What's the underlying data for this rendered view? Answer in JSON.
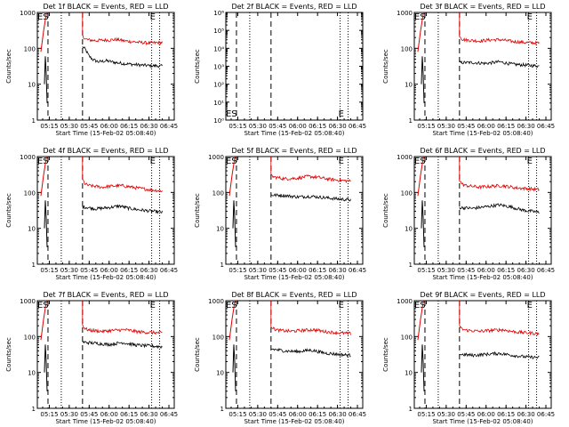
{
  "figure": {
    "background": "#ffffff",
    "events_color": "#000000",
    "lld_color": "#e00000"
  },
  "chart_data": [
    {
      "type": "line",
      "title": "Det 1f BLACK = Events, RED = LLD",
      "xlabel": "Start Time (15-Feb-02 05:08:40)",
      "ylabel": "Counts/sec",
      "yscale": "log",
      "ylim": [
        1,
        1000
      ],
      "xlim": [
        "05:06",
        "06:49"
      ],
      "x_ticks": [
        "05:15",
        "05:30",
        "05:45",
        "06:00",
        "06:15",
        "06:30",
        "06:45"
      ],
      "y_ticks": [
        "1",
        "10",
        "100",
        "1000"
      ],
      "markers": {
        "ES": "05:10",
        "E": "06:32",
        "dashed": [
          "05:14",
          "05:40"
        ],
        "dotted": [
          "05:24",
          "06:32",
          "06:38"
        ]
      },
      "data_start": "05:40",
      "series": [
        {
          "values": [
            [
              40,
              110
            ],
            [
              42,
              95
            ],
            [
              45,
              60
            ],
            [
              48,
              48
            ],
            [
              52,
              42
            ],
            [
              58,
              45
            ],
            [
              65,
              40
            ],
            [
              70,
              38
            ],
            [
              80,
              35
            ],
            [
              90,
              33
            ],
            [
              100,
              32
            ]
          ]
        },
        {
          "values": [
            [
              40,
              230
            ],
            [
              42,
              180
            ],
            [
              45,
              170
            ],
            [
              50,
              165
            ],
            [
              58,
              170
            ],
            [
              66,
              175
            ],
            [
              72,
              160
            ],
            [
              80,
              150
            ],
            [
              90,
              140
            ],
            [
              100,
              145
            ]
          ]
        }
      ]
    },
    {
      "type": "line",
      "title": "Det 2f BLACK = Events, RED = LLD",
      "xlabel": "Start Time (15-Feb-02 05:08:40)",
      "ylabel": "Counts/sec",
      "yscale": "log",
      "ylim": [
        1,
        1000000
      ],
      "xlim": [
        "05:06",
        "06:49"
      ],
      "x_ticks": [
        "05:15",
        "05:30",
        "05:45",
        "06:00",
        "06:15",
        "06:30",
        "06:45"
      ],
      "y_ticks": [
        "10⁰",
        "10¹",
        "10²",
        "10³",
        "10⁴",
        "10⁵",
        "10⁶"
      ],
      "markers": {
        "ES": "05:10",
        "E": "06:32",
        "dashed": [
          "05:14",
          "05:40"
        ],
        "dotted": [
          "05:24",
          "06:32",
          "06:38"
        ]
      },
      "data_start": "05:40",
      "series": []
    },
    {
      "type": "line",
      "title": "Det 3f BLACK = Events, RED = LLD",
      "xlabel": "Start Time (15-Feb-02 05:08:40)",
      "ylabel": "Counts/sec",
      "yscale": "log",
      "ylim": [
        1,
        1000
      ],
      "xlim": [
        "05:06",
        "06:49"
      ],
      "x_ticks": [
        "05:15",
        "05:30",
        "05:45",
        "06:00",
        "06:15",
        "06:30",
        "06:45"
      ],
      "y_ticks": [
        "1",
        "10",
        "100",
        "1000"
      ],
      "markers": {
        "ES": "05:10",
        "E": "06:32",
        "dashed": [
          "05:14",
          "05:40"
        ],
        "dotted": [
          "05:24",
          "06:32",
          "06:38"
        ]
      },
      "data_start": "05:40",
      "series": [
        {
          "values": [
            [
              40,
              40
            ],
            [
              50,
              40
            ],
            [
              60,
              38
            ],
            [
              70,
              42
            ],
            [
              80,
              36
            ],
            [
              90,
              34
            ],
            [
              100,
              32
            ]
          ]
        },
        {
          "values": [
            [
              40,
              230
            ],
            [
              42,
              180
            ],
            [
              45,
              170
            ],
            [
              55,
              160
            ],
            [
              62,
              170
            ],
            [
              70,
              175
            ],
            [
              80,
              155
            ],
            [
              90,
              145
            ],
            [
              100,
              140
            ]
          ]
        }
      ]
    },
    {
      "type": "line",
      "title": "Det 4f BLACK = Events, RED = LLD",
      "xlabel": "Start Time (15-Feb-02 05:08:40)",
      "ylabel": "Counts/sec",
      "yscale": "log",
      "ylim": [
        1,
        1000
      ],
      "xlim": [
        "05:06",
        "06:49"
      ],
      "x_ticks": [
        "05:15",
        "05:30",
        "05:45",
        "06:00",
        "06:15",
        "06:30",
        "06:45"
      ],
      "y_ticks": [
        "1",
        "10",
        "100",
        "1000"
      ],
      "markers": {
        "ES": "05:10",
        "E": "06:32",
        "dashed": [
          "05:14",
          "05:40"
        ],
        "dotted": [
          "05:24",
          "06:32",
          "06:38"
        ]
      },
      "data_start": "05:40",
      "series": [
        {
          "values": [
            [
              40,
              40
            ],
            [
              50,
              35
            ],
            [
              60,
              38
            ],
            [
              68,
              42
            ],
            [
              75,
              36
            ],
            [
              85,
              32
            ],
            [
              100,
              28
            ]
          ]
        },
        {
          "values": [
            [
              40,
              230
            ],
            [
              42,
              170
            ],
            [
              45,
              155
            ],
            [
              55,
              140
            ],
            [
              62,
              150
            ],
            [
              70,
              155
            ],
            [
              80,
              135
            ],
            [
              90,
              120
            ],
            [
              100,
              110
            ]
          ]
        }
      ]
    },
    {
      "type": "line",
      "title": "Det 5f BLACK = Events, RED = LLD",
      "xlabel": "Start Time (15-Feb-02 05:08:40)",
      "ylabel": "Counts/sec",
      "yscale": "log",
      "ylim": [
        1,
        1000
      ],
      "xlim": [
        "05:06",
        "06:49"
      ],
      "x_ticks": [
        "05:15",
        "05:30",
        "05:45",
        "06:00",
        "06:15",
        "06:30",
        "06:45"
      ],
      "y_ticks": [
        "1",
        "10",
        "100",
        "1000"
      ],
      "markers": {
        "ES": "05:10",
        "E": "06:32",
        "dashed": [
          "05:14",
          "05:40"
        ],
        "dotted": [
          "05:24",
          "06:32",
          "06:38"
        ]
      },
      "data_start": "05:40",
      "series": [
        {
          "values": [
            [
              40,
              85
            ],
            [
              50,
              82
            ],
            [
              60,
              75
            ],
            [
              70,
              78
            ],
            [
              80,
              72
            ],
            [
              90,
              66
            ],
            [
              100,
              62
            ]
          ]
        },
        {
          "values": [
            [
              40,
              300
            ],
            [
              42,
              270
            ],
            [
              50,
              240
            ],
            [
              60,
              250
            ],
            [
              68,
              280
            ],
            [
              75,
              265
            ],
            [
              85,
              230
            ],
            [
              100,
              205
            ]
          ]
        }
      ]
    },
    {
      "type": "line",
      "title": "Det 6f BLACK = Events, RED = LLD",
      "xlabel": "Start Time (15-Feb-02 05:08:40)",
      "ylabel": "Counts/sec",
      "yscale": "log",
      "ylim": [
        1,
        1000
      ],
      "xlim": [
        "05:06",
        "06:49"
      ],
      "x_ticks": [
        "05:15",
        "05:30",
        "05:45",
        "06:00",
        "06:15",
        "06:30",
        "06:45"
      ],
      "y_ticks": [
        "1",
        "10",
        "100",
        "1000"
      ],
      "markers": {
        "ES": "05:10",
        "E": "06:32",
        "dashed": [
          "05:14",
          "05:40"
        ],
        "dotted": [
          "05:24",
          "06:32",
          "06:38"
        ]
      },
      "data_start": "05:40",
      "series": [
        {
          "values": [
            [
              40,
              38
            ],
            [
              50,
              36
            ],
            [
              60,
              40
            ],
            [
              70,
              45
            ],
            [
              78,
              40
            ],
            [
              88,
              32
            ],
            [
              100,
              28
            ]
          ]
        },
        {
          "values": [
            [
              40,
              220
            ],
            [
              42,
              170
            ],
            [
              45,
              155
            ],
            [
              55,
              140
            ],
            [
              65,
              150
            ],
            [
              72,
              155
            ],
            [
              82,
              135
            ],
            [
              100,
              120
            ]
          ]
        }
      ]
    },
    {
      "type": "line",
      "title": "Det 7f BLACK = Events, RED = LLD",
      "xlabel": "Start Time (15-Feb-02 05:08:40)",
      "ylabel": "Counts/sec",
      "yscale": "log",
      "ylim": [
        1,
        1000
      ],
      "xlim": [
        "05:06",
        "06:49"
      ],
      "x_ticks": [
        "05:15",
        "05:30",
        "05:45",
        "06:00",
        "06:15",
        "06:30",
        "06:45"
      ],
      "y_ticks": [
        "1",
        "10",
        "100",
        "1000"
      ],
      "markers": {
        "ES": "05:10",
        "E": "06:32",
        "dashed": [
          "05:14",
          "05:40"
        ],
        "dotted": [
          "05:24",
          "06:32",
          "06:38"
        ]
      },
      "data_start": "05:40",
      "series": [
        {
          "values": [
            [
              40,
              70
            ],
            [
              50,
              65
            ],
            [
              60,
              60
            ],
            [
              70,
              68
            ],
            [
              80,
              58
            ],
            [
              90,
              55
            ],
            [
              100,
              52
            ]
          ]
        },
        {
          "values": [
            [
              40,
              210
            ],
            [
              42,
              165
            ],
            [
              45,
              150
            ],
            [
              55,
              140
            ],
            [
              65,
              150
            ],
            [
              72,
              155
            ],
            [
              82,
              135
            ],
            [
              100,
              125
            ]
          ]
        }
      ]
    },
    {
      "type": "line",
      "title": "Det 8f BLACK = Events, RED = LLD",
      "xlabel": "Start Time (15-Feb-02 05:08:40)",
      "ylabel": "Counts/sec",
      "yscale": "log",
      "ylim": [
        1,
        1000
      ],
      "xlim": [
        "05:06",
        "06:49"
      ],
      "x_ticks": [
        "05:15",
        "05:30",
        "05:45",
        "06:00",
        "06:15",
        "06:30",
        "06:45"
      ],
      "y_ticks": [
        "1",
        "10",
        "100",
        "1000"
      ],
      "markers": {
        "ES": "05:10",
        "E": "06:32",
        "dashed": [
          "05:14",
          "05:40"
        ],
        "dotted": [
          "05:24",
          "06:32",
          "06:38"
        ]
      },
      "data_start": "05:40",
      "series": [
        {
          "values": [
            [
              40,
              45
            ],
            [
              50,
              40
            ],
            [
              60,
              38
            ],
            [
              70,
              42
            ],
            [
              80,
              35
            ],
            [
              90,
              32
            ],
            [
              100,
              30
            ]
          ]
        },
        {
          "values": [
            [
              40,
              200
            ],
            [
              42,
              165
            ],
            [
              45,
              150
            ],
            [
              55,
              140
            ],
            [
              65,
              150
            ],
            [
              72,
              155
            ],
            [
              82,
              135
            ],
            [
              100,
              120
            ]
          ]
        }
      ]
    },
    {
      "type": "line",
      "title": "Det 9f BLACK = Events, RED = LLD",
      "xlabel": "Start Time (15-Feb-02 05:08:40)",
      "ylabel": "Counts/sec",
      "yscale": "log",
      "ylim": [
        1,
        1000
      ],
      "xlim": [
        "05:06",
        "06:49"
      ],
      "x_ticks": [
        "05:15",
        "05:30",
        "05:45",
        "06:00",
        "06:15",
        "06:30",
        "06:45"
      ],
      "y_ticks": [
        "1",
        "10",
        "100",
        "1000"
      ],
      "markers": {
        "ES": "05:10",
        "E": "06:32",
        "dashed": [
          "05:14",
          "05:40"
        ],
        "dotted": [
          "05:24",
          "06:32",
          "06:38"
        ]
      },
      "data_start": "05:40",
      "series": [
        {
          "values": [
            [
              40,
              32
            ],
            [
              50,
              30
            ],
            [
              60,
              32
            ],
            [
              70,
              34
            ],
            [
              80,
              30
            ],
            [
              90,
              27
            ],
            [
              100,
              26
            ]
          ]
        },
        {
          "values": [
            [
              40,
              200
            ],
            [
              42,
              160
            ],
            [
              45,
              150
            ],
            [
              55,
              140
            ],
            [
              65,
              150
            ],
            [
              72,
              155
            ],
            [
              82,
              135
            ],
            [
              100,
              120
            ]
          ]
        }
      ]
    }
  ]
}
